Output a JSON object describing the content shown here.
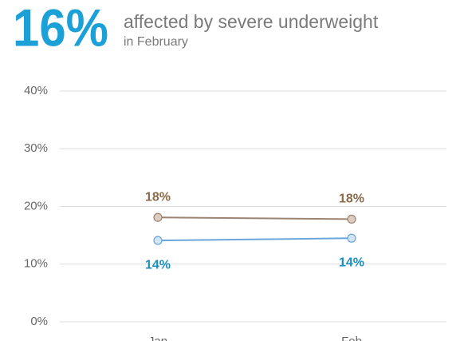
{
  "chart_data": {
    "type": "line",
    "headline": "16%",
    "title": "affected by severe underweight",
    "subtitle": "in February",
    "categories": [
      "Jan",
      "Feb"
    ],
    "series": [
      {
        "color": "#9c8472",
        "marker_fill": "#dccbbf",
        "label_color": "#8a6a48",
        "label_position": "above",
        "values": [
          18.1,
          17.8
        ],
        "value_labels": [
          "18%",
          "18%"
        ]
      },
      {
        "color": "#6aa6db",
        "marker_fill": "#d2e5f7",
        "label_color": "#1b8dc0",
        "label_position": "below",
        "values": [
          14.1,
          14.5
        ],
        "value_labels": [
          "14%",
          "14%"
        ]
      }
    ],
    "ylim": [
      0,
      40
    ],
    "yticks": [
      {
        "value": 0,
        "label": "0%"
      },
      {
        "value": 10,
        "label": "10%"
      },
      {
        "value": 20,
        "label": "20%"
      },
      {
        "value": 30,
        "label": "30%"
      },
      {
        "value": 40,
        "label": "40%"
      }
    ],
    "grid": true
  }
}
